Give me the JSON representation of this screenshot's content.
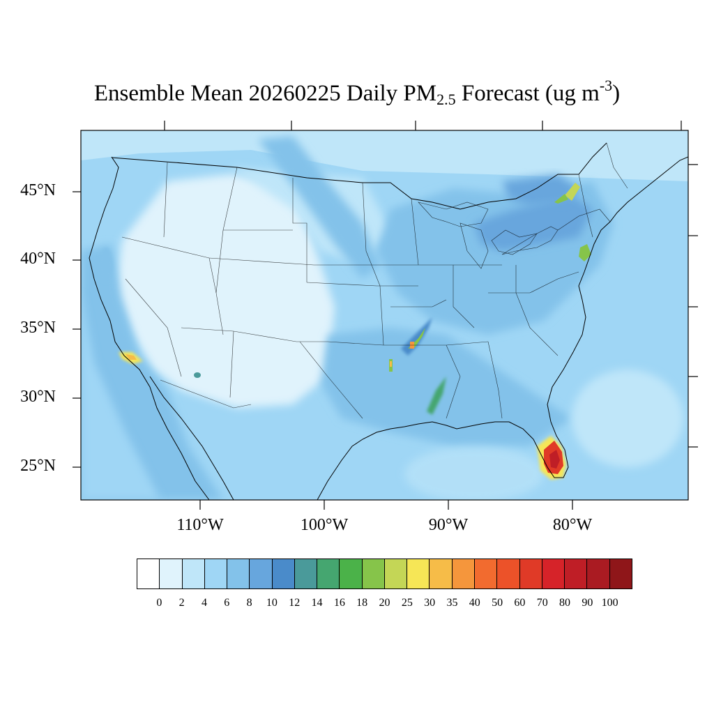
{
  "title": {
    "prefix": "Ensemble Mean 20260225 Daily PM",
    "sub": "2.5",
    "middle": " Forecast (ug m",
    "sup": "-3",
    "suffix": ")"
  },
  "map": {
    "projection": "lambert-conformal",
    "region": "CONUS",
    "lat_ticks": [
      {
        "value": 45,
        "label": "45°N"
      },
      {
        "value": 40,
        "label": "40°N"
      },
      {
        "value": 35,
        "label": "35°N"
      },
      {
        "value": 30,
        "label": "30°N"
      },
      {
        "value": 25,
        "label": "25°N"
      }
    ],
    "lon_ticks": [
      {
        "value": -110,
        "label": "110°W"
      },
      {
        "value": -100,
        "label": "100°W"
      },
      {
        "value": -90,
        "label": "90°W"
      },
      {
        "value": -80,
        "label": "80°W"
      }
    ],
    "hotspots": [
      {
        "name": "south-florida",
        "max_level": 80
      },
      {
        "name": "southern-california",
        "max_level": 35
      },
      {
        "name": "arkansas",
        "max_level": 35
      },
      {
        "name": "mississippi-delta",
        "max_level": 25
      },
      {
        "name": "new-york-new-jersey",
        "max_level": 20
      },
      {
        "name": "montreal",
        "max_level": 25
      }
    ]
  },
  "colorbar": {
    "labels": [
      "0",
      "2",
      "4",
      "6",
      "8",
      "10",
      "12",
      "14",
      "16",
      "18",
      "20",
      "25",
      "30",
      "35",
      "40",
      "50",
      "60",
      "70",
      "80",
      "90",
      "100"
    ],
    "colors": [
      "#ffffff",
      "#e0f3fc",
      "#bfe6f9",
      "#9fd6f5",
      "#83c2ea",
      "#67a6dd",
      "#4a8bca",
      "#4a9a9a",
      "#45a670",
      "#4bb249",
      "#86c44a",
      "#c4d656",
      "#f6e656",
      "#f6bc48",
      "#f5963c",
      "#f26b2f",
      "#ec5229",
      "#e03a27",
      "#d62329",
      "#bf1e26",
      "#aa1b22",
      "#8f1619"
    ]
  }
}
